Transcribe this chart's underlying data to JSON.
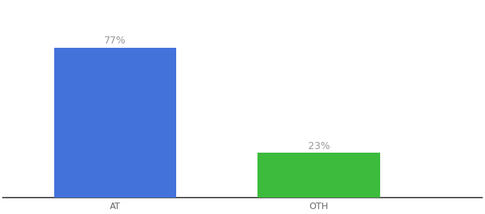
{
  "categories": [
    "AT",
    "OTH"
  ],
  "values": [
    77,
    23
  ],
  "bar_colors": [
    "#4472db",
    "#3dbb3d"
  ],
  "label_texts": [
    "77%",
    "23%"
  ],
  "ylim": [
    0,
    100
  ],
  "background_color": "#ffffff",
  "bar_width": 0.6,
  "label_fontsize": 10,
  "tick_fontsize": 9,
  "label_color": "#999999",
  "tick_color": "#666666",
  "xlim": [
    -0.55,
    1.8
  ]
}
